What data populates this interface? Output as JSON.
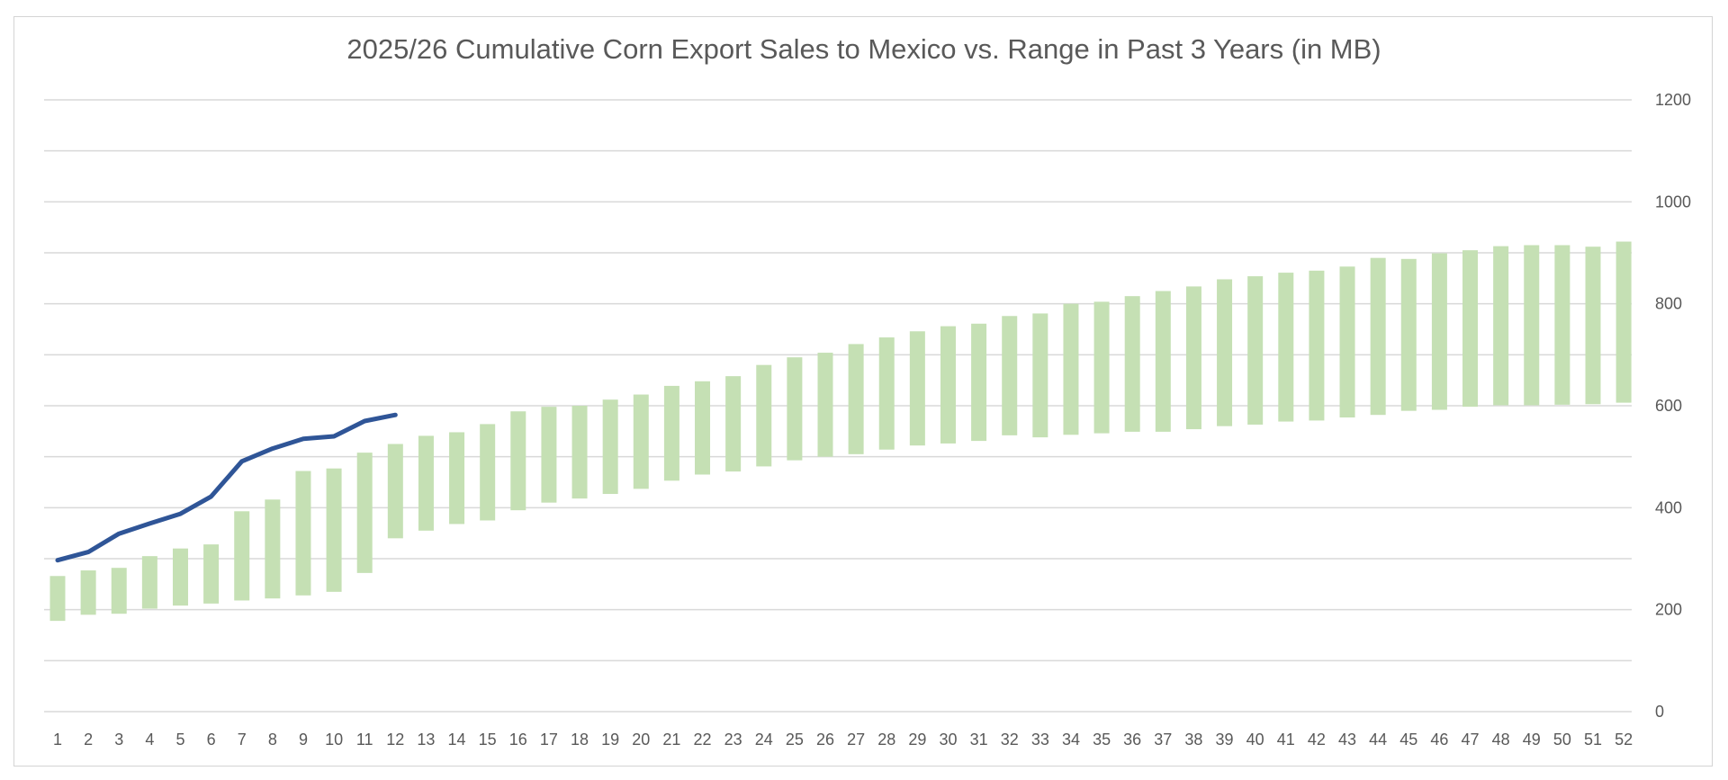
{
  "chart_data": {
    "type": "bar",
    "title": "2025/26 Cumulative Corn Export Sales to Mexico vs. Range in Past 3 Years (in MB)",
    "xlabel": "",
    "ylabel": "",
    "categories": [
      "1",
      "2",
      "3",
      "4",
      "5",
      "6",
      "7",
      "8",
      "9",
      "10",
      "11",
      "12",
      "13",
      "14",
      "15",
      "16",
      "17",
      "18",
      "19",
      "20",
      "21",
      "22",
      "23",
      "24",
      "25",
      "26",
      "27",
      "28",
      "29",
      "30",
      "31",
      "32",
      "33",
      "34",
      "35",
      "36",
      "37",
      "38",
      "39",
      "40",
      "41",
      "42",
      "43",
      "44",
      "45",
      "46",
      "47",
      "48",
      "49",
      "50",
      "51",
      "52"
    ],
    "ylim": [
      0,
      1200
    ],
    "yticks": [
      0,
      200,
      400,
      600,
      800,
      1000,
      1200
    ],
    "y_axis_position": "right",
    "grid": true,
    "legend": "none",
    "series": [
      {
        "kind": "floating-bar",
        "color": "#c5e0b4",
        "low": [
          178,
          190,
          192,
          202,
          208,
          212,
          218,
          222,
          228,
          235,
          272,
          340,
          355,
          368,
          375,
          395,
          410,
          418,
          427,
          437,
          453,
          465,
          471,
          481,
          493,
          500,
          505,
          514,
          522,
          526,
          531,
          542,
          538,
          543,
          546,
          549,
          549,
          554,
          560,
          563,
          569,
          571,
          577,
          582,
          590,
          592,
          598,
          601,
          601,
          602,
          603,
          606
        ],
        "high": [
          266,
          277,
          282,
          305,
          320,
          328,
          393,
          416,
          472,
          477,
          508,
          525,
          541,
          548,
          564,
          589,
          598,
          600,
          612,
          622,
          639,
          648,
          658,
          680,
          695,
          704,
          721,
          734,
          746,
          756,
          761,
          776,
          781,
          800,
          804,
          815,
          825,
          834,
          848,
          854,
          861,
          865,
          873,
          890,
          888,
          899,
          905,
          913,
          915,
          915,
          912,
          922
        ]
      },
      {
        "kind": "line",
        "color": "#2f5597",
        "x": [
          "1",
          "2",
          "3",
          "4",
          "5",
          "6",
          "7",
          "8",
          "9",
          "10",
          "11",
          "12"
        ],
        "values": [
          297,
          313,
          349,
          369,
          388,
          422,
          491,
          516,
          535,
          540,
          570,
          582
        ]
      }
    ]
  }
}
